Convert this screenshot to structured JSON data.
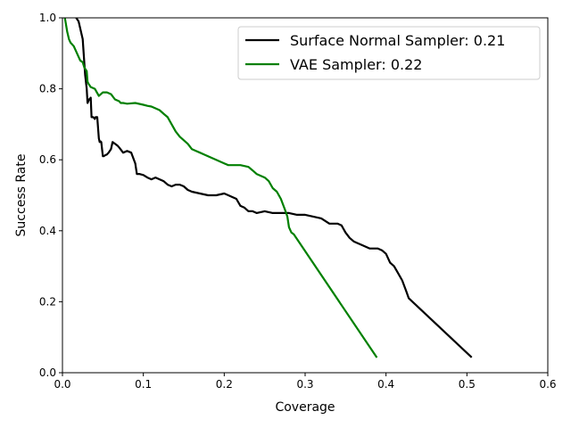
{
  "chart_data": {
    "type": "line",
    "title": "",
    "xlabel": "Coverage",
    "ylabel": "Success Rate",
    "xlim": [
      0.0,
      0.6
    ],
    "ylim": [
      0.0,
      1.0
    ],
    "xticks": [
      "0.0",
      "0.1",
      "0.2",
      "0.3",
      "0.4",
      "0.5",
      "0.6"
    ],
    "yticks": [
      "0.0",
      "0.2",
      "0.4",
      "0.6",
      "0.8",
      "1.0"
    ],
    "legend_position": "top-right",
    "grid": false,
    "series": [
      {
        "name": "Surface Normal Sampler: 0.21",
        "color": "#000000",
        "x": [
          0.017,
          0.02,
          0.025,
          0.028,
          0.03,
          0.031,
          0.032,
          0.033,
          0.035,
          0.036,
          0.038,
          0.04,
          0.041,
          0.043,
          0.045,
          0.046,
          0.047,
          0.048,
          0.05,
          0.051,
          0.053,
          0.055,
          0.057,
          0.06,
          0.062,
          0.065,
          0.068,
          0.07,
          0.075,
          0.08,
          0.085,
          0.09,
          0.092,
          0.095,
          0.1,
          0.105,
          0.11,
          0.115,
          0.12,
          0.125,
          0.13,
          0.135,
          0.14,
          0.145,
          0.15,
          0.155,
          0.16,
          0.17,
          0.18,
          0.19,
          0.2,
          0.205,
          0.21,
          0.215,
          0.22,
          0.225,
          0.23,
          0.235,
          0.24,
          0.25,
          0.26,
          0.27,
          0.28,
          0.29,
          0.3,
          0.31,
          0.32,
          0.33,
          0.34,
          0.345,
          0.35,
          0.355,
          0.36,
          0.365,
          0.37,
          0.38,
          0.39,
          0.395,
          0.4,
          0.405,
          0.41,
          0.415,
          0.42,
          0.425,
          0.428,
          0.505
        ],
        "y": [
          1.0,
          0.99,
          0.94,
          0.84,
          0.8,
          0.76,
          0.765,
          0.77,
          0.775,
          0.72,
          0.72,
          0.715,
          0.72,
          0.72,
          0.66,
          0.65,
          0.652,
          0.65,
          0.61,
          0.61,
          0.613,
          0.615,
          0.62,
          0.63,
          0.65,
          0.645,
          0.64,
          0.635,
          0.62,
          0.625,
          0.62,
          0.59,
          0.56,
          0.56,
          0.557,
          0.55,
          0.545,
          0.55,
          0.545,
          0.54,
          0.53,
          0.525,
          0.53,
          0.53,
          0.525,
          0.515,
          0.51,
          0.505,
          0.5,
          0.5,
          0.505,
          0.5,
          0.495,
          0.49,
          0.47,
          0.465,
          0.455,
          0.455,
          0.45,
          0.455,
          0.45,
          0.45,
          0.45,
          0.445,
          0.445,
          0.44,
          0.435,
          0.42,
          0.42,
          0.415,
          0.395,
          0.38,
          0.37,
          0.365,
          0.36,
          0.35,
          0.35,
          0.345,
          0.335,
          0.31,
          0.3,
          0.28,
          0.26,
          0.23,
          0.21,
          0.045
        ]
      },
      {
        "name": "VAE Sampler: 0.22",
        "color": "#008000",
        "x": [
          0.003,
          0.006,
          0.008,
          0.01,
          0.012,
          0.014,
          0.016,
          0.018,
          0.02,
          0.022,
          0.025,
          0.027,
          0.03,
          0.031,
          0.032,
          0.035,
          0.04,
          0.045,
          0.05,
          0.052,
          0.055,
          0.06,
          0.065,
          0.07,
          0.072,
          0.075,
          0.08,
          0.09,
          0.1,
          0.105,
          0.11,
          0.115,
          0.12,
          0.125,
          0.13,
          0.135,
          0.14,
          0.145,
          0.15,
          0.155,
          0.16,
          0.165,
          0.17,
          0.175,
          0.18,
          0.19,
          0.2,
          0.205,
          0.21,
          0.22,
          0.23,
          0.235,
          0.24,
          0.245,
          0.25,
          0.255,
          0.26,
          0.265,
          0.27,
          0.275,
          0.278,
          0.28,
          0.283,
          0.286,
          0.388
        ],
        "y": [
          1.0,
          0.96,
          0.94,
          0.93,
          0.925,
          0.92,
          0.91,
          0.9,
          0.89,
          0.88,
          0.875,
          0.86,
          0.85,
          0.82,
          0.815,
          0.805,
          0.8,
          0.78,
          0.79,
          0.79,
          0.79,
          0.785,
          0.77,
          0.765,
          0.76,
          0.76,
          0.758,
          0.76,
          0.755,
          0.752,
          0.75,
          0.745,
          0.74,
          0.73,
          0.72,
          0.7,
          0.68,
          0.665,
          0.655,
          0.645,
          0.63,
          0.625,
          0.62,
          0.615,
          0.61,
          0.6,
          0.59,
          0.585,
          0.585,
          0.585,
          0.58,
          0.57,
          0.56,
          0.555,
          0.55,
          0.54,
          0.52,
          0.51,
          0.49,
          0.46,
          0.44,
          0.41,
          0.395,
          0.39,
          0.045
        ]
      }
    ]
  }
}
